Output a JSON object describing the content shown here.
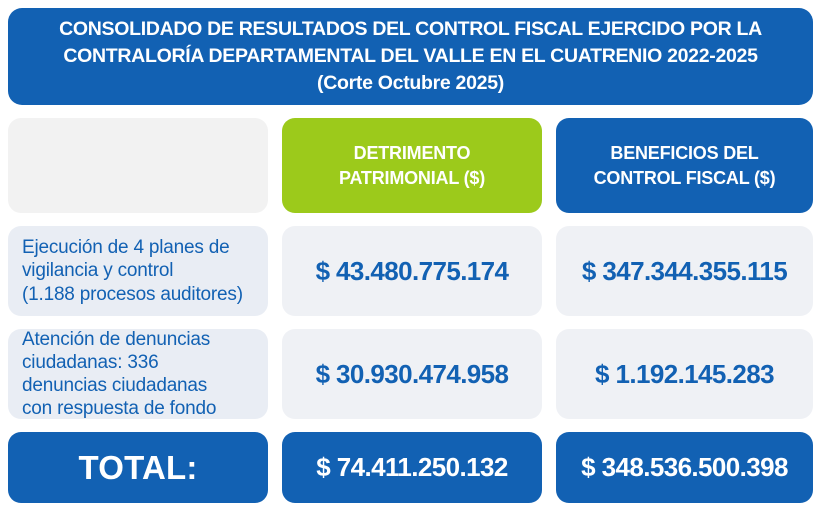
{
  "colors": {
    "blue": "#1261b3",
    "green": "#9cca1b",
    "corner_bg": "#f2f2f2",
    "label_bg": "#e9edf4",
    "cell_bg": "#eff1f5",
    "text_on_dark": "#ffffff"
  },
  "banner": {
    "title": "CONSOLIDADO DE RESULTADOS DEL CONTROL FISCAL EJERCIDO POR LA\nCONTRALORÍA DEPARTAMENTAL DEL VALLE EN EL CUATRENIO 2022-2025\n(Corte Octubre 2025)"
  },
  "table": {
    "columns": [
      {
        "label": ""
      },
      {
        "label": "DETRIMENTO\nPATRIMONIAL ($)",
        "color": "#9cca1b"
      },
      {
        "label": "BENEFICIOS DEL\nCONTROL FISCAL ($)",
        "color": "#1261b3"
      }
    ],
    "rows": [
      {
        "label": "Ejecución de 4 planes de\nvigilancia  y control\n(1.188 procesos auditores)",
        "detrimento": "$ 43.480.775.174",
        "beneficios": "$ 347.344.355.115"
      },
      {
        "label": "Atención de denuncias\nciudadanas: 336\ndenuncias ciudadanas\ncon respuesta de fondo",
        "detrimento": "$ 30.930.474.958",
        "beneficios": "$ 1.192.145.283"
      }
    ],
    "total": {
      "label": "TOTAL:",
      "detrimento": "$ 74.411.250.132",
      "beneficios": "$ 348.536.500.398"
    }
  },
  "chart_data": {
    "type": "table",
    "title": "CONSOLIDADO DE RESULTADOS DEL CONTROL FISCAL EJERCIDO POR LA CONTRALORÍA DEPARTAMENTAL DEL VALLE EN EL CUATRENIO 2022-2025 (Corte Octubre 2025)",
    "columns": [
      "",
      "DETRIMENTO PATRIMONIAL ($)",
      "BENEFICIOS DEL CONTROL FISCAL ($)"
    ],
    "categories": [
      "Ejecución de 4 planes de vigilancia y control (1.188 procesos auditores)",
      "Atención de denuncias ciudadanas: 336 denuncias ciudadanas con respuesta de fondo",
      "TOTAL:"
    ],
    "series": [
      {
        "name": "DETRIMENTO PATRIMONIAL ($)",
        "values": [
          43480775174,
          30930474958,
          74411250132
        ]
      },
      {
        "name": "BENEFICIOS DEL CONTROL FISCAL ($)",
        "values": [
          347344355115,
          1192145283,
          348536500398
        ]
      }
    ]
  }
}
